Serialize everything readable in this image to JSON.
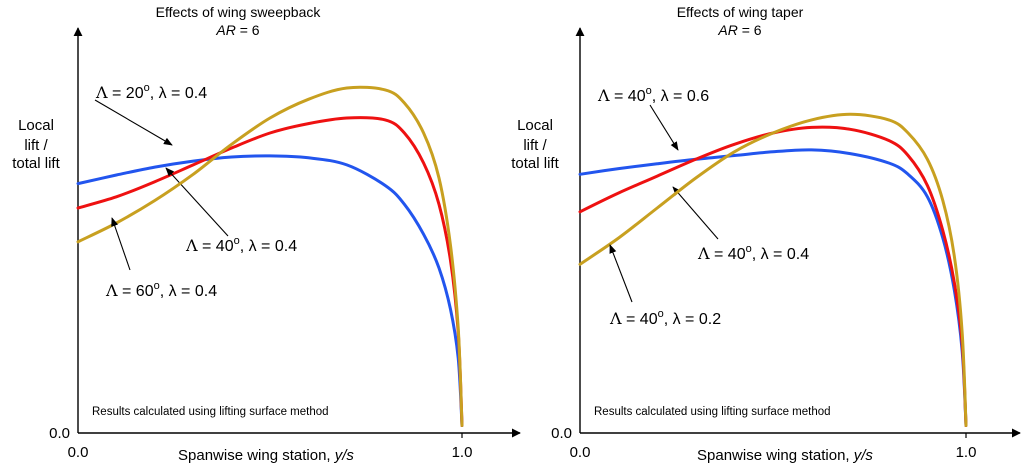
{
  "chart_data": [
    {
      "type": "line",
      "title": "Effects of wing sweepback",
      "subtitle_prefix": "AR",
      "subtitle_value": "= 6",
      "ylabel": [
        "Local",
        "lift /",
        "total lift"
      ],
      "xlabel_text": "Spanwise wing station, ",
      "xlabel_var": "y/s",
      "x_ticks": [
        "0.0",
        "1.0"
      ],
      "y_ticks": [
        "0.0"
      ],
      "xlim": [
        0,
        1
      ],
      "ylim": [
        0,
        1
      ],
      "note": "Results calculated using lifting surface method",
      "series": [
        {
          "name": "Λ = 20°, λ = 0.4",
          "label": {
            "sym": "Λ",
            "val": " = 20",
            "sup": "o",
            "rest": ", λ = 0.4"
          },
          "color": "#2255ee",
          "x": [
            0,
            0.1,
            0.2,
            0.3,
            0.4,
            0.5,
            0.6,
            0.7,
            0.8,
            0.85,
            0.9,
            0.94,
            0.97,
            0.99,
            1.0
          ],
          "y": [
            0.665,
            0.688,
            0.709,
            0.725,
            0.736,
            0.739,
            0.734,
            0.715,
            0.66,
            0.61,
            0.53,
            0.44,
            0.33,
            0.2,
            0.02
          ]
        },
        {
          "name": "Λ = 40°, λ = 0.4",
          "label": {
            "sym": "Λ",
            "val": " = 40",
            "sup": "o",
            "rest": ", λ = 0.4"
          },
          "color": "#ee1111",
          "x": [
            0,
            0.1,
            0.2,
            0.3,
            0.4,
            0.5,
            0.6,
            0.7,
            0.8,
            0.85,
            0.9,
            0.94,
            0.97,
            0.99,
            1.0
          ],
          "y": [
            0.6,
            0.63,
            0.67,
            0.715,
            0.76,
            0.8,
            0.825,
            0.84,
            0.835,
            0.8,
            0.72,
            0.61,
            0.46,
            0.27,
            0.02
          ]
        },
        {
          "name": "Λ = 60°, λ = 0.4",
          "label": {
            "sym": "Λ",
            "val": " = 60",
            "sup": "o",
            "rest": ", λ = 0.4"
          },
          "color": "#c8a020",
          "x": [
            0,
            0.1,
            0.2,
            0.3,
            0.4,
            0.5,
            0.6,
            0.7,
            0.8,
            0.85,
            0.9,
            0.94,
            0.97,
            0.99,
            1.0
          ],
          "y": [
            0.51,
            0.56,
            0.62,
            0.69,
            0.77,
            0.84,
            0.89,
            0.92,
            0.915,
            0.88,
            0.8,
            0.68,
            0.5,
            0.28,
            0.02
          ]
        }
      ]
    },
    {
      "type": "line",
      "title": "Effects of wing taper",
      "subtitle_prefix": "AR",
      "subtitle_value": "= 6",
      "ylabel": [
        "Local",
        "lift /",
        "total lift"
      ],
      "xlabel_text": "Spanwise wing station, ",
      "xlabel_var": "y/s",
      "x_ticks": [
        "0.0",
        "1.0"
      ],
      "y_ticks": [
        "0.0"
      ],
      "xlim": [
        0,
        1
      ],
      "ylim": [
        0,
        1
      ],
      "note": "Results calculated using lifting surface method",
      "series": [
        {
          "name": "Λ = 40°, λ = 0.6",
          "label": {
            "sym": "Λ",
            "val": " = 40",
            "sup": "o",
            "rest": ", λ = 0.6"
          },
          "color": "#2255ee",
          "x": [
            0,
            0.1,
            0.2,
            0.3,
            0.4,
            0.5,
            0.6,
            0.7,
            0.8,
            0.85,
            0.9,
            0.94,
            0.97,
            0.99,
            1.0
          ],
          "y": [
            0.69,
            0.705,
            0.718,
            0.73,
            0.74,
            0.75,
            0.755,
            0.745,
            0.72,
            0.69,
            0.63,
            0.52,
            0.38,
            0.22,
            0.02
          ]
        },
        {
          "name": "Λ = 40°, λ = 0.4",
          "label": {
            "sym": "Λ",
            "val": " = 40",
            "sup": "o",
            "rest": ", λ = 0.4"
          },
          "color": "#ee1111",
          "x": [
            0,
            0.1,
            0.2,
            0.3,
            0.4,
            0.5,
            0.6,
            0.7,
            0.8,
            0.85,
            0.9,
            0.94,
            0.97,
            0.99,
            1.0
          ],
          "y": [
            0.59,
            0.64,
            0.685,
            0.73,
            0.77,
            0.8,
            0.815,
            0.81,
            0.78,
            0.74,
            0.66,
            0.54,
            0.4,
            0.24,
            0.02
          ]
        },
        {
          "name": "Λ = 40°, λ = 0.2",
          "label": {
            "sym": "Λ",
            "val": " = 40",
            "sup": "o",
            "rest": ", λ = 0.2"
          },
          "color": "#c8a020",
          "x": [
            0,
            0.1,
            0.2,
            0.3,
            0.4,
            0.5,
            0.6,
            0.7,
            0.8,
            0.85,
            0.9,
            0.94,
            0.97,
            0.99,
            1.0
          ],
          "y": [
            0.45,
            0.52,
            0.6,
            0.68,
            0.75,
            0.8,
            0.835,
            0.85,
            0.835,
            0.8,
            0.73,
            0.62,
            0.47,
            0.27,
            0.02
          ]
        }
      ]
    }
  ]
}
